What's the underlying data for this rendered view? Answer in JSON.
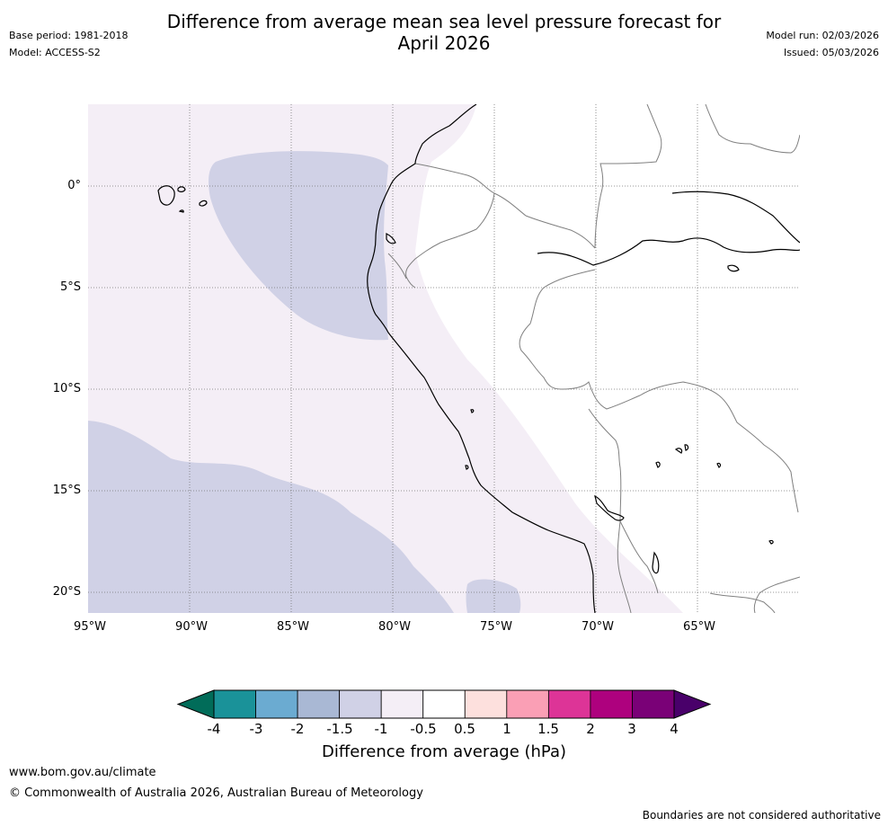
{
  "title_line1": "Difference from average mean sea level pressure forecast for",
  "title_line2": "April 2026",
  "header_left": {
    "base_period": "Base period: 1981-2018",
    "model": "Model: ACCESS-S2"
  },
  "header_right": {
    "model_run": "Model run: 02/03/2026",
    "issued": "Issued: 05/03/2026"
  },
  "map": {
    "region": "Eastern tropical Pacific / western South America",
    "lon_range": [
      -95,
      -60
    ],
    "lat_range": [
      4,
      -21
    ],
    "lat_labels": [
      "0°",
      "5°S",
      "10°S",
      "15°S",
      "20°S"
    ],
    "lon_labels": [
      "95°W",
      "90°W",
      "85°W",
      "80°W",
      "75°W",
      "70°W",
      "65°W"
    ]
  },
  "colorbar": {
    "label": "Difference from average (hPa)",
    "ticks": [
      "-4",
      "-3",
      "-2",
      "-1.5",
      "-1",
      "-0.5",
      "0.5",
      "1",
      "1.5",
      "2",
      "3",
      "4"
    ],
    "colors": [
      "#1a9299",
      "#6babd1",
      "#a9b8d4",
      "#d0d1e6",
      "#f4eef6",
      "#ffffff",
      "#fde0dd",
      "#fa9fb5",
      "#dd3497",
      "#ae017e",
      "#7a0177"
    ],
    "under_color": "#016c59",
    "over_color": "#49006a"
  },
  "footer": {
    "url": "www.bom.gov.au/climate",
    "copyright": "© Commonwealth of Australia 2026, Australian Bureau of Meteorology",
    "disclaimer": "Boundaries are not considered authoritative"
  }
}
